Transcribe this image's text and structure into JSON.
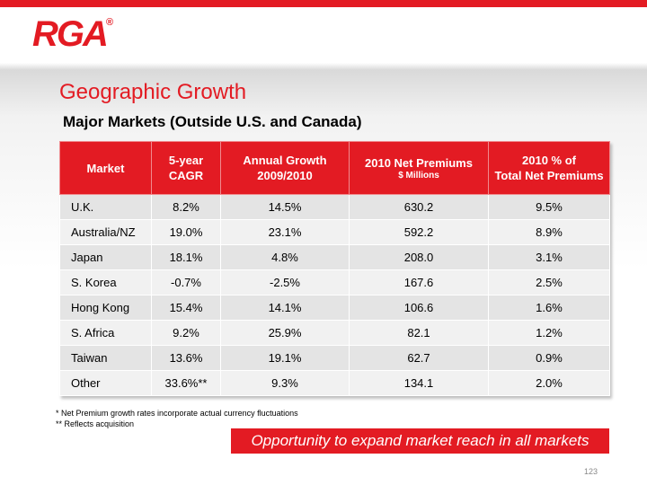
{
  "header": {
    "logo_text": "RGA",
    "logo_mark": "®",
    "accent_color": "#e31b23"
  },
  "title": "Geographic Growth",
  "subtitle": "Major Markets (Outside U.S. and Canada)",
  "table": {
    "headers": [
      {
        "line1": "Market",
        "line2": ""
      },
      {
        "line1": "5-year",
        "line2": "CAGR"
      },
      {
        "line1": "Annual Growth",
        "line2": "2009/2010"
      },
      {
        "line1": "2010 Net Premiums",
        "line2": "$ Millions"
      },
      {
        "line1": "2010 % of",
        "line2": "Total Net Premiums"
      }
    ],
    "rows": [
      [
        "U.K.",
        "8.2%",
        "14.5%",
        "630.2",
        "9.5%"
      ],
      [
        "Australia/NZ",
        "19.0%",
        "23.1%",
        "592.2",
        "8.9%"
      ],
      [
        "Japan",
        "18.1%",
        "4.8%",
        "208.0",
        "3.1%"
      ],
      [
        "S. Korea",
        "-0.7%",
        "-2.5%",
        "167.6",
        "2.5%"
      ],
      [
        "Hong Kong",
        "15.4%",
        "14.1%",
        "106.6",
        "1.6%"
      ],
      [
        "S. Africa",
        "9.2%",
        "25.9%",
        "82.1",
        "1.2%"
      ],
      [
        "Taiwan",
        "13.6%",
        "19.1%",
        "62.7",
        "0.9%"
      ],
      [
        "Other",
        "33.6%**",
        "9.3%",
        "134.1",
        "2.0%"
      ]
    ]
  },
  "footnotes": [
    "*  Net Premium growth rates incorporate actual currency fluctuations",
    "** Reflects acquisition"
  ],
  "callout": "Opportunity to expand market reach in all markets",
  "page_number": "123"
}
